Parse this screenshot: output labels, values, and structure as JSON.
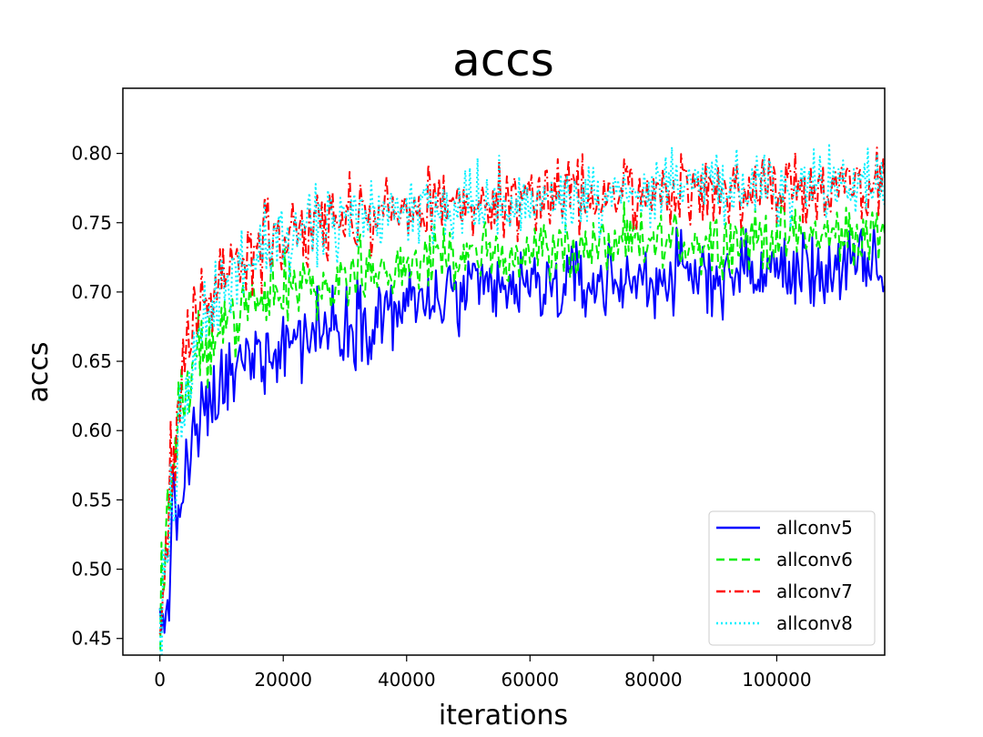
{
  "chart_data": {
    "type": "line",
    "title": "accs",
    "xlabel": "iterations",
    "ylabel": "accs",
    "xlim": [
      -6000,
      117500
    ],
    "ylim": [
      0.438,
      0.847
    ],
    "xticks": [
      0,
      20000,
      40000,
      60000,
      80000,
      100000
    ],
    "xtick_labels": [
      "0",
      "20000",
      "40000",
      "60000",
      "80000",
      "100000"
    ],
    "yticks": [
      0.45,
      0.5,
      0.55,
      0.6,
      0.65,
      0.7,
      0.75,
      0.8
    ],
    "ytick_labels": [
      "0.45",
      "0.50",
      "0.55",
      "0.60",
      "0.65",
      "0.70",
      "0.75",
      "0.80"
    ],
    "grid": false,
    "legend_position": "lower-right",
    "x_start": 0,
    "x_end": 117500,
    "x_step": 250,
    "series": [
      {
        "name": "allconv5",
        "color": "#0000ff",
        "dash": "solid",
        "trend_x": [
          0,
          2000,
          4000,
          6000,
          10000,
          15000,
          20000,
          30000,
          40000,
          50000,
          60000,
          80000,
          100000,
          117500
        ],
        "trend_y": [
          0.44,
          0.52,
          0.565,
          0.6,
          0.63,
          0.655,
          0.665,
          0.678,
          0.69,
          0.698,
          0.703,
          0.71,
          0.715,
          0.718
        ],
        "noise": [
          0.045,
          0.028,
          0.022,
          0.022,
          0.022,
          0.022,
          0.022,
          0.022,
          0.02,
          0.02,
          0.02,
          0.02,
          0.02,
          0.02
        ]
      },
      {
        "name": "allconv6",
        "color": "#00ee00",
        "dash": "dashed",
        "trend_x": [
          0,
          2000,
          4000,
          6000,
          10000,
          15000,
          20000,
          30000,
          40000,
          50000,
          60000,
          80000,
          100000,
          117500
        ],
        "trend_y": [
          0.47,
          0.575,
          0.62,
          0.65,
          0.675,
          0.69,
          0.7,
          0.712,
          0.72,
          0.726,
          0.73,
          0.735,
          0.74,
          0.742
        ],
        "noise": [
          0.045,
          0.025,
          0.02,
          0.018,
          0.018,
          0.018,
          0.018,
          0.016,
          0.016,
          0.016,
          0.016,
          0.016,
          0.016,
          0.016
        ]
      },
      {
        "name": "allconv7",
        "color": "#ff0000",
        "dash": "dashdot",
        "trend_x": [
          0,
          2000,
          4000,
          6000,
          10000,
          15000,
          20000,
          30000,
          40000,
          50000,
          60000,
          80000,
          100000,
          117500
        ],
        "trend_y": [
          0.47,
          0.59,
          0.65,
          0.685,
          0.71,
          0.73,
          0.74,
          0.752,
          0.76,
          0.765,
          0.768,
          0.772,
          0.775,
          0.777
        ],
        "noise": [
          0.045,
          0.03,
          0.025,
          0.02,
          0.02,
          0.02,
          0.02,
          0.018,
          0.018,
          0.018,
          0.018,
          0.018,
          0.018,
          0.018
        ]
      },
      {
        "name": "allconv8",
        "color": "#00f0ff",
        "dash": "dotted",
        "trend_x": [
          0,
          2000,
          4000,
          6000,
          10000,
          15000,
          20000,
          30000,
          40000,
          50000,
          60000,
          80000,
          100000,
          117500
        ],
        "trend_y": [
          0.45,
          0.56,
          0.62,
          0.665,
          0.7,
          0.725,
          0.738,
          0.75,
          0.758,
          0.763,
          0.767,
          0.773,
          0.777,
          0.779
        ],
        "noise": [
          0.045,
          0.028,
          0.022,
          0.02,
          0.02,
          0.02,
          0.02,
          0.018,
          0.018,
          0.018,
          0.018,
          0.018,
          0.018,
          0.018
        ]
      }
    ]
  }
}
